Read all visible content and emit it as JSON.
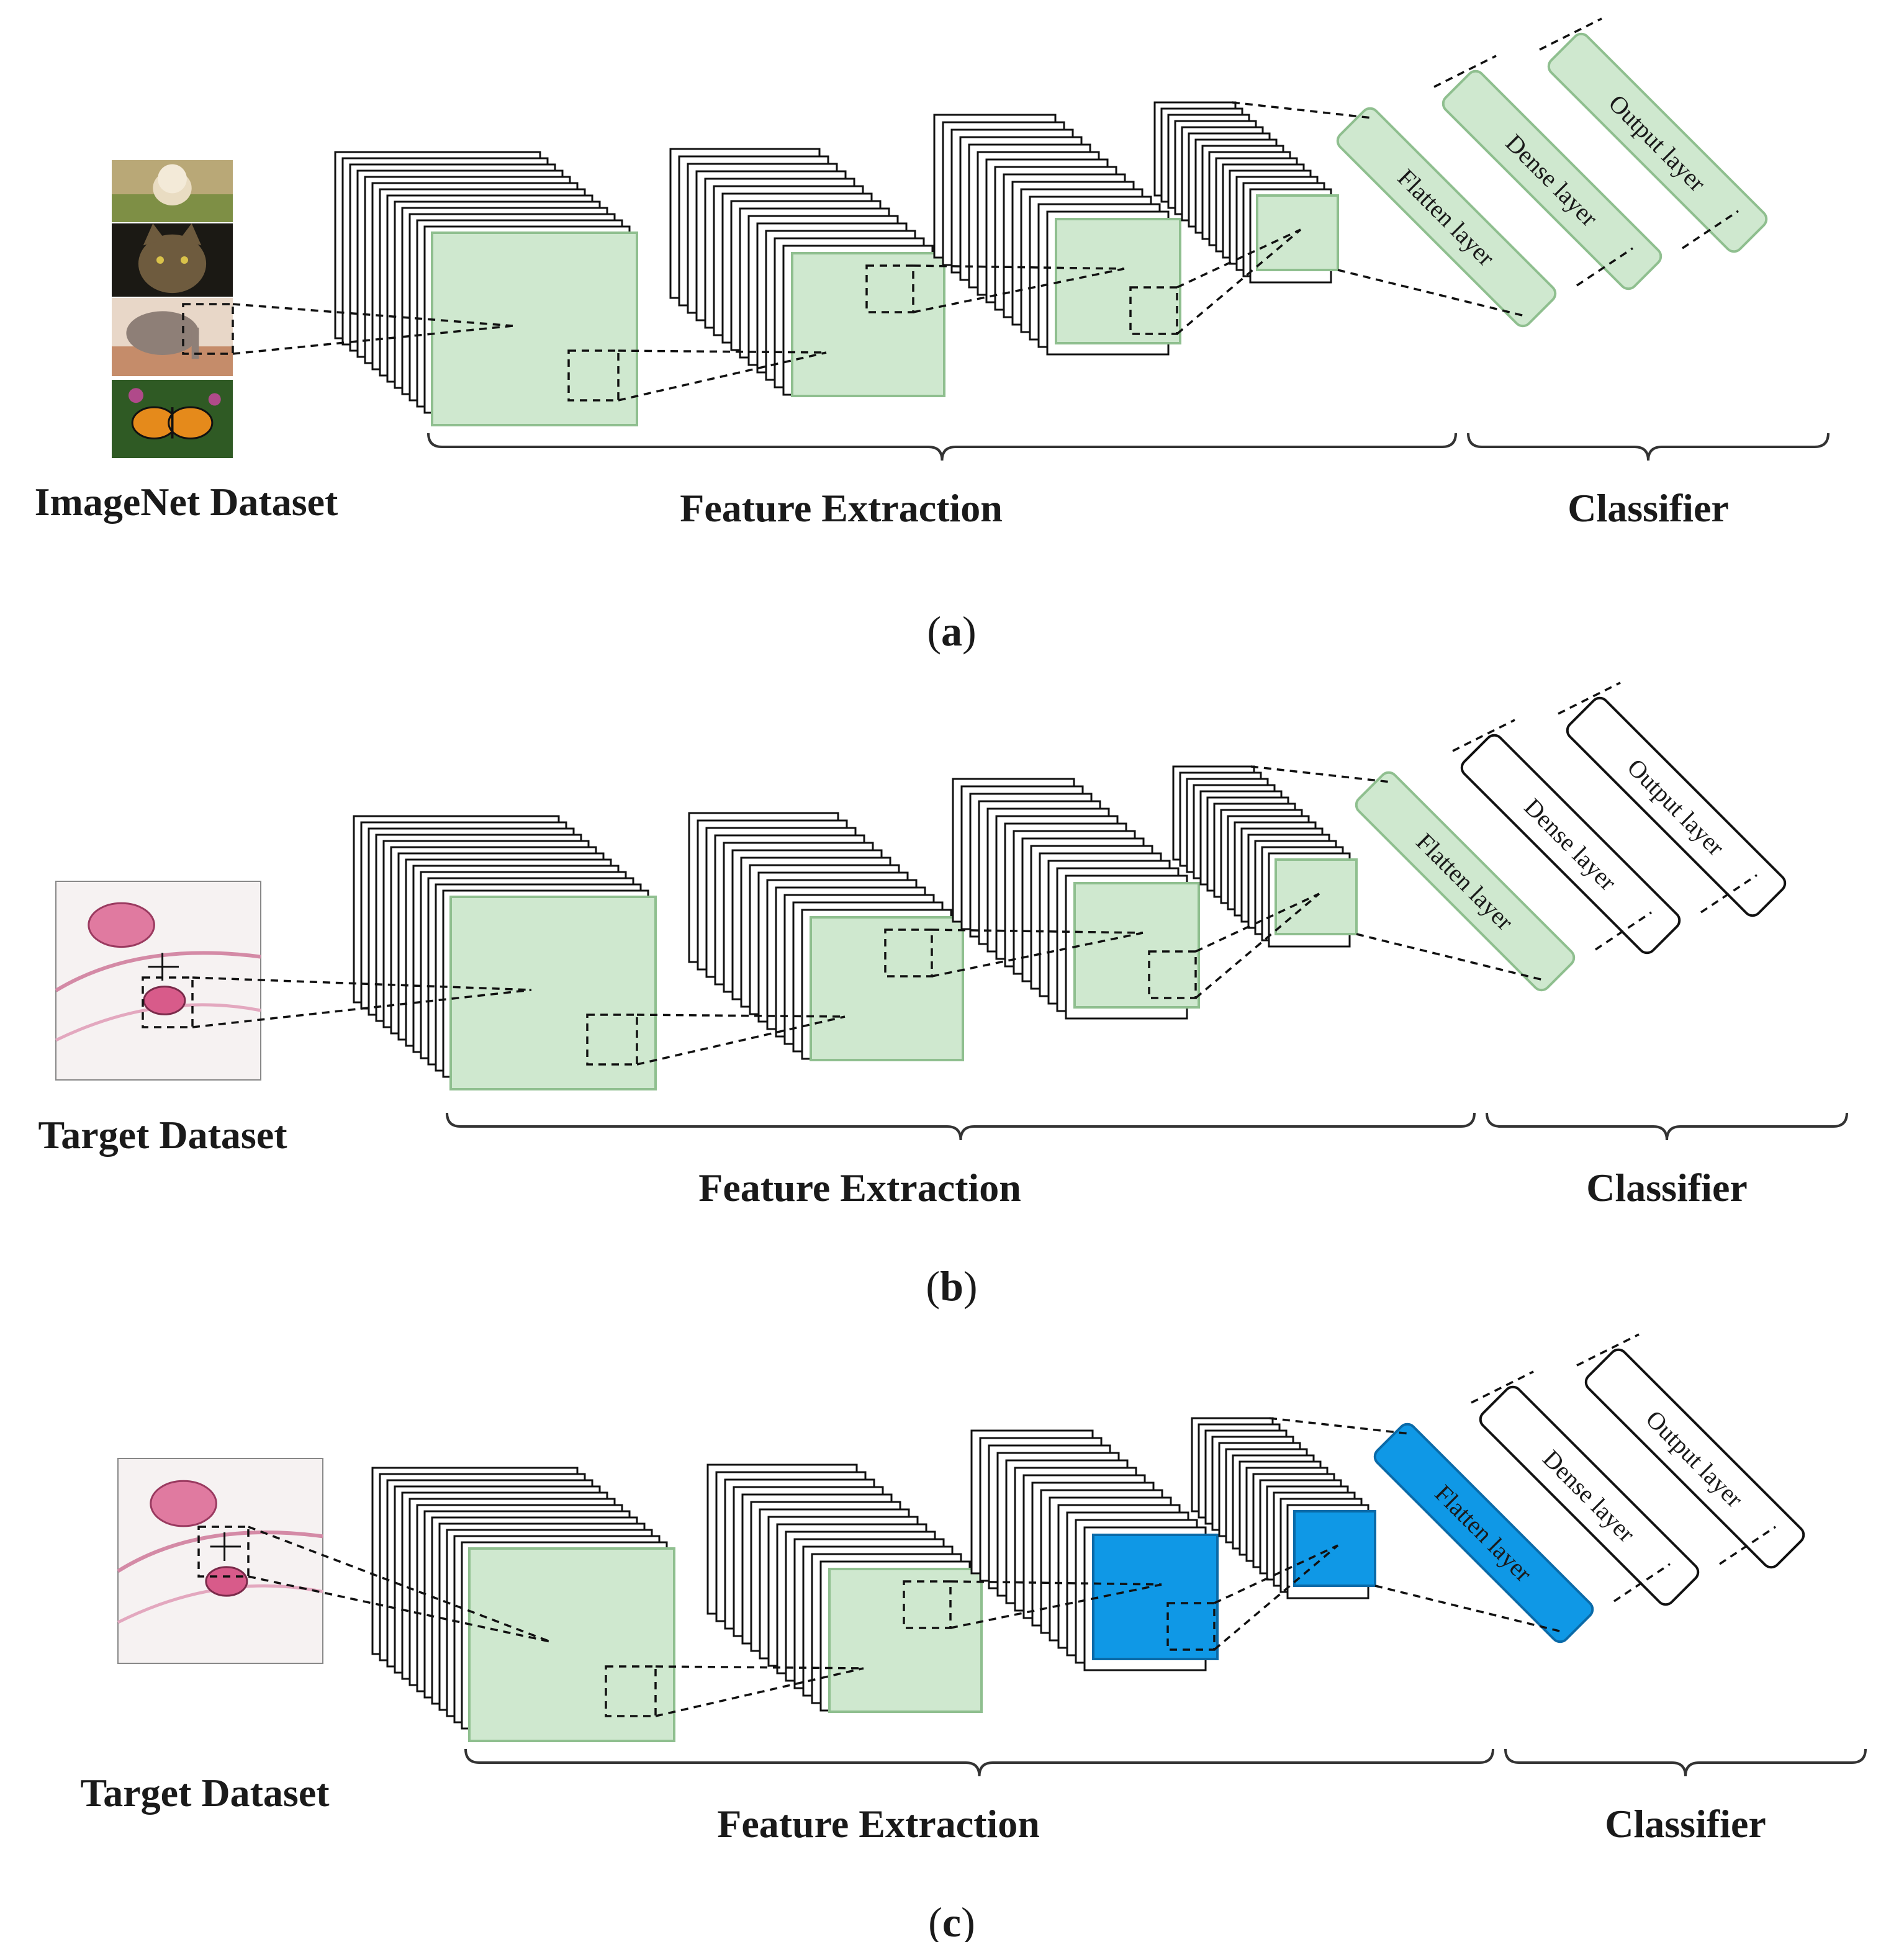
{
  "panels": [
    {
      "caption_letter": "a",
      "dataset_label": "ImageNet Dataset",
      "dataset_icons": [
        "dog-photo-icon",
        "cat-photo-icon",
        "elephant-photo-icon",
        "butterfly-photo-icon"
      ],
      "feature_label": "Feature Extraction",
      "classifier_label": "Classifier",
      "flatten_label": "Flatten layer",
      "dense_label": "Dense layer",
      "output_label": "Output layer"
    },
    {
      "caption_letter": "b",
      "dataset_label": "Target Dataset",
      "dataset_icons": [
        "histology-plot-icon"
      ],
      "feature_label": "Feature Extraction",
      "classifier_label": "Classifier",
      "flatten_label": "Flatten layer",
      "dense_label": "Dense layer",
      "output_label": "Output layer"
    },
    {
      "caption_letter": "c",
      "dataset_label": "Target Dataset",
      "dataset_icons": [
        "histology-plot-icon"
      ],
      "feature_label": "Feature Extraction",
      "classifier_label": "Classifier",
      "flatten_label": "Flatten layer",
      "dense_label": "Dense layer",
      "output_label": "Output layer"
    }
  ],
  "colors": {
    "frozen_green": "#cfe8cf",
    "green_border": "#8fbf8f",
    "trainable_blue": "#0f98e6",
    "blue_border": "#0a6aa8",
    "stack_stroke": "#111111",
    "text": "#1a1a1a"
  }
}
